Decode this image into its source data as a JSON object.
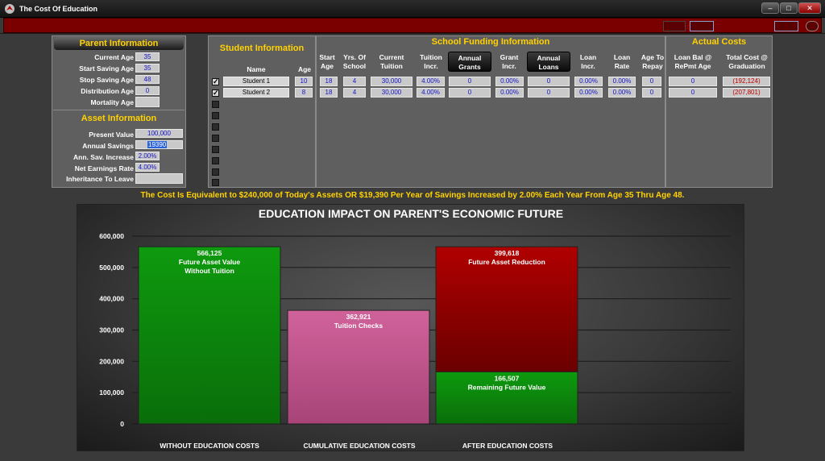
{
  "window": {
    "title": "The Cost Of Education"
  },
  "parent_info": {
    "title": "Parent Information",
    "fields": [
      {
        "label": "Current Age",
        "value": "35"
      },
      {
        "label": "Start Saving Age",
        "value": "35"
      },
      {
        "label": "Stop Saving Age",
        "value": "48"
      },
      {
        "label": "Distribution Age",
        "value": "0"
      },
      {
        "label": "Mortality Age",
        "value": ""
      }
    ]
  },
  "asset_info": {
    "title": "Asset Information",
    "fields": [
      {
        "label": "Present Value",
        "value": "100,000"
      },
      {
        "label": "Annual Savings",
        "value": "19390"
      },
      {
        "label": "Ann. Sav. Increase",
        "value": "2.00%"
      },
      {
        "label": "Net Earnings Rate",
        "value": "4.00%"
      },
      {
        "label": "Inheritance To Leave",
        "value": ""
      }
    ]
  },
  "student_info": {
    "title": "Student Information",
    "col_name": "Name",
    "col_age": "Age",
    "students": [
      {
        "name": "Student 1",
        "age": "10",
        "checked": true
      },
      {
        "name": "Student 2",
        "age": "8",
        "checked": true
      }
    ]
  },
  "funding": {
    "title": "School Funding Information",
    "headers": {
      "start_age": "Start Age",
      "yrs_school": "Yrs. Of School",
      "tuition": "Current Tuition",
      "tuition_incr": "Tuition Incr.",
      "annual_grants": "Annual Grants",
      "grant_incr": "Grant Incr.",
      "annual_loans": "Annual Loans",
      "loan_incr": "Loan Incr.",
      "loan_rate": "Loan Rate",
      "age_to_repay": "Age To Repay"
    },
    "rows": [
      {
        "start_age": "18",
        "yrs_school": "4",
        "tuition": "30,000",
        "tuition_incr": "4.00%",
        "grants": "0",
        "grant_incr": "0.00%",
        "loans": "0",
        "loan_incr": "0.00%",
        "loan_rate": "0.00%",
        "age_to_repay": "0"
      },
      {
        "start_age": "18",
        "yrs_school": "4",
        "tuition": "30,000",
        "tuition_incr": "4.00%",
        "grants": "0",
        "grant_incr": "0.00%",
        "loans": "0",
        "loan_incr": "0.00%",
        "loan_rate": "0.00%",
        "age_to_repay": "0"
      }
    ]
  },
  "actual_costs": {
    "title": "Actual Costs",
    "col_loan": "Loan Bal @ RePmt Age",
    "col_total": "Total Cost @ Graduation",
    "rows": [
      {
        "loan_bal": "0",
        "total_cost": "(192,124)"
      },
      {
        "loan_bal": "0",
        "total_cost": "(207,801)"
      }
    ]
  },
  "summary_text": "The Cost Is Equivalent to $240,000 of Today's Assets OR $19,390 Per Year of Savings Increased by 2.00% Each Year From Age 35 Thru Age 48.",
  "chart_data": {
    "type": "bar",
    "title": "EDUCATION IMPACT ON PARENT'S ECONOMIC FUTURE",
    "ylim": [
      0,
      600000
    ],
    "ytick_labels": [
      "0",
      "100,000",
      "200,000",
      "300,000",
      "400,000",
      "500,000",
      "600,000"
    ],
    "ytick_values": [
      0,
      100000,
      200000,
      300000,
      400000,
      500000,
      600000
    ],
    "categories": [
      "WITHOUT EDUCATION COSTS",
      "CUMULATIVE EDUCATION COSTS",
      "AFTER EDUCATION COSTS"
    ],
    "bars": [
      {
        "category": 0,
        "base": 0,
        "value": 566125,
        "color": "#0e9a0e",
        "label_value": "566,125",
        "label_text": [
          "Future Asset Value",
          "Without Tuition"
        ]
      },
      {
        "category": 1,
        "base": 0,
        "value": 362921,
        "color": "#d0629a",
        "label_value": "362,921",
        "label_text": [
          "Tuition Checks"
        ]
      },
      {
        "category": 2,
        "base": 0,
        "value": 166507,
        "color": "#0e9a0e",
        "label_value": "166,507",
        "label_text": [
          "Remaining Future Value"
        ]
      },
      {
        "category": 2,
        "base": 166507,
        "value": 399618,
        "color": "#b00000",
        "label_value": "399,618",
        "label_text": [
          "Future Asset Reduction"
        ]
      }
    ]
  }
}
